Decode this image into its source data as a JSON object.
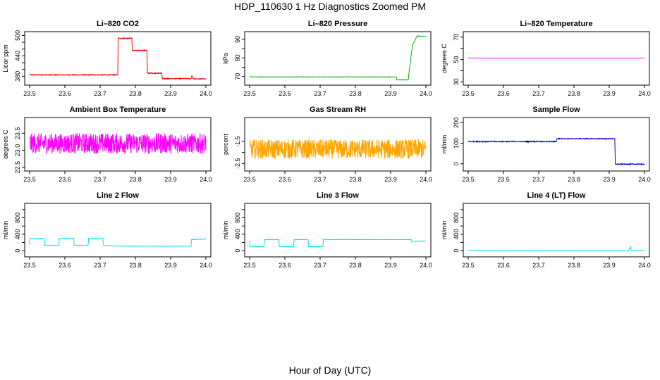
{
  "figure": {
    "title": "HDP_110630  1 Hz Diagnostics Zoomed PM",
    "xlabel": "Hour of Day (UTC)"
  },
  "chart_data": [
    {
      "type": "line",
      "title": "Li–820 CO2",
      "ylabel": "Licor ppm",
      "color": "#ff0000",
      "xlim": [
        23.5,
        24.0
      ],
      "ylim": [
        360,
        505
      ],
      "xticks": [
        "23.5",
        "23.6",
        "23.7",
        "23.8",
        "23.9",
        "24.0"
      ],
      "yticks": [
        380,
        400,
        420,
        440,
        460,
        480,
        500
      ],
      "ytick_labels": [
        "380",
        "",
        "",
        "440",
        "",
        "",
        "500"
      ],
      "noise": 1.2,
      "x": [
        23.5,
        23.75,
        23.751,
        23.79,
        23.791,
        23.833,
        23.834,
        23.875,
        23.876,
        23.958,
        23.96,
        23.962,
        23.97,
        24.0
      ],
      "y": [
        384,
        384,
        492,
        492,
        456,
        456,
        389,
        389,
        373,
        373,
        382,
        374,
        372,
        372
      ]
    },
    {
      "type": "line",
      "title": "Li–820 Pressure",
      "ylabel": "kPa",
      "color": "#00b000",
      "xlim": [
        23.5,
        24.0
      ],
      "ylim": [
        66.5,
        93
      ],
      "xticks": [
        "23.5",
        "23.6",
        "23.7",
        "23.8",
        "23.9",
        "24.0"
      ],
      "yticks": [
        70,
        75,
        80,
        85,
        90
      ],
      "ytick_labels": [
        "70",
        "",
        "80",
        "",
        "90"
      ],
      "noise": 0.1,
      "x": [
        23.5,
        23.916,
        23.917,
        23.95,
        23.951,
        23.962,
        23.975,
        24.0
      ],
      "y": [
        69.8,
        69.8,
        68.2,
        68.2,
        70.5,
        87,
        91.8,
        91.6
      ]
    },
    {
      "type": "line",
      "title": "Li–820 Temperature",
      "ylabel": "degrees C",
      "color": "#ff00ff",
      "xlim": [
        23.5,
        24.0
      ],
      "ylim": [
        29,
        73
      ],
      "xticks": [
        "23.5",
        "23.6",
        "23.7",
        "23.8",
        "23.9",
        "24.0"
      ],
      "yticks": [
        30,
        40,
        50,
        60,
        70
      ],
      "ytick_labels": [
        "30",
        "",
        "50",
        "",
        "70"
      ],
      "noise": 0,
      "x": [
        23.5,
        24.0
      ],
      "y": [
        51.3,
        51.3
      ]
    },
    {
      "type": "line",
      "title": "Ambient Box Temperature",
      "ylabel": "degrees C",
      "color": "#ff00ff",
      "xlim": [
        23.5,
        24.0
      ],
      "ylim": [
        22.45,
        23.9
      ],
      "xticks": [
        "23.5",
        "23.6",
        "23.7",
        "23.8",
        "23.9",
        "24.0"
      ],
      "yticks": [
        22.5,
        23.0,
        23.5
      ],
      "ytick_labels": [
        "22.5",
        "23.0",
        "23.5"
      ],
      "noise": 0.3,
      "x": [
        23.5,
        24.0
      ],
      "y": [
        23.2,
        23.2
      ]
    },
    {
      "type": "line",
      "title": "Gas Stream RH",
      "ylabel": "percent",
      "color": "#ffa500",
      "xlim": [
        23.5,
        24.0
      ],
      "ylim": [
        -2.75,
        -0.5
      ],
      "xticks": [
        "23.5",
        "23.6",
        "23.7",
        "23.8",
        "23.9",
        "24.0"
      ],
      "yticks": [
        -2.5,
        -2.0,
        -1.5
      ],
      "ytick_labels": [
        "-2.5",
        "",
        "-1.5"
      ],
      "noise": 0.45,
      "x": [
        23.5,
        24.0
      ],
      "y": [
        -1.85,
        -1.85
      ]
    },
    {
      "type": "line",
      "title": "Sample Flow",
      "ylabel": "ml/min",
      "color": "#0000cc",
      "xlim": [
        23.5,
        24.0
      ],
      "ylim": [
        -25,
        215
      ],
      "xticks": [
        "23.5",
        "23.6",
        "23.7",
        "23.8",
        "23.9",
        "24.0"
      ],
      "yticks": [
        0,
        100,
        200
      ],
      "ytick_labels": [
        "0",
        "100",
        "200"
      ],
      "noise": 2,
      "x": [
        23.5,
        23.75,
        23.751,
        23.916,
        23.917,
        24.0
      ],
      "y": [
        108,
        108,
        122,
        122,
        -2,
        -2
      ]
    },
    {
      "type": "line",
      "title": "Line 2 Flow",
      "ylabel": "ml/min",
      "color": "#00e5ee",
      "xlim": [
        23.5,
        24.0
      ],
      "ylim": [
        -100,
        1100
      ],
      "xticks": [
        "23.5",
        "23.6",
        "23.7",
        "23.8",
        "23.9",
        "24.0"
      ],
      "yticks": [
        0,
        200,
        400,
        600,
        800,
        1000
      ],
      "ytick_labels": [
        "0",
        "",
        "400",
        "",
        "800",
        ""
      ],
      "noise": 4,
      "x": [
        23.5,
        23.501,
        23.541,
        23.542,
        23.583,
        23.584,
        23.625,
        23.626,
        23.666,
        23.667,
        23.708,
        23.709,
        23.75,
        23.958,
        23.959,
        24.0
      ],
      "y": [
        150,
        300,
        300,
        130,
        130,
        300,
        300,
        130,
        130,
        300,
        300,
        130,
        110,
        110,
        270,
        280
      ]
    },
    {
      "type": "line",
      "title": "Line 3 Flow",
      "ylabel": "ml/min",
      "color": "#00e5ee",
      "xlim": [
        23.5,
        24.0
      ],
      "ylim": [
        -100,
        1100
      ],
      "xticks": [
        "23.5",
        "23.6",
        "23.7",
        "23.8",
        "23.9",
        "24.0"
      ],
      "yticks": [
        0,
        200,
        400,
        600,
        800,
        1000
      ],
      "ytick_labels": [
        "0",
        "",
        "400",
        "",
        "800",
        ""
      ],
      "noise": 4,
      "x": [
        23.5,
        23.501,
        23.502,
        23.541,
        23.542,
        23.583,
        23.584,
        23.625,
        23.626,
        23.666,
        23.667,
        23.708,
        23.709,
        23.958,
        23.959,
        24.0
      ],
      "y": [
        250,
        100,
        100,
        100,
        270,
        270,
        100,
        100,
        270,
        270,
        100,
        100,
        270,
        270,
        230,
        230
      ]
    },
    {
      "type": "line",
      "title": "Line 4 (LT) Flow",
      "ylabel": "ml/min",
      "color": "#00e5ee",
      "xlim": [
        23.5,
        24.0
      ],
      "ylim": [
        -100,
        1100
      ],
      "xticks": [
        "23.5",
        "23.6",
        "23.7",
        "23.8",
        "23.9",
        "24.0"
      ],
      "yticks": [
        0,
        200,
        400,
        600,
        800,
        1000
      ],
      "ytick_labels": [
        "0",
        "",
        "400",
        "",
        "800",
        ""
      ],
      "noise": 2,
      "x": [
        23.5,
        23.955,
        23.96,
        23.962,
        23.966,
        24.0
      ],
      "y": [
        0,
        0,
        90,
        20,
        0,
        0
      ]
    }
  ]
}
